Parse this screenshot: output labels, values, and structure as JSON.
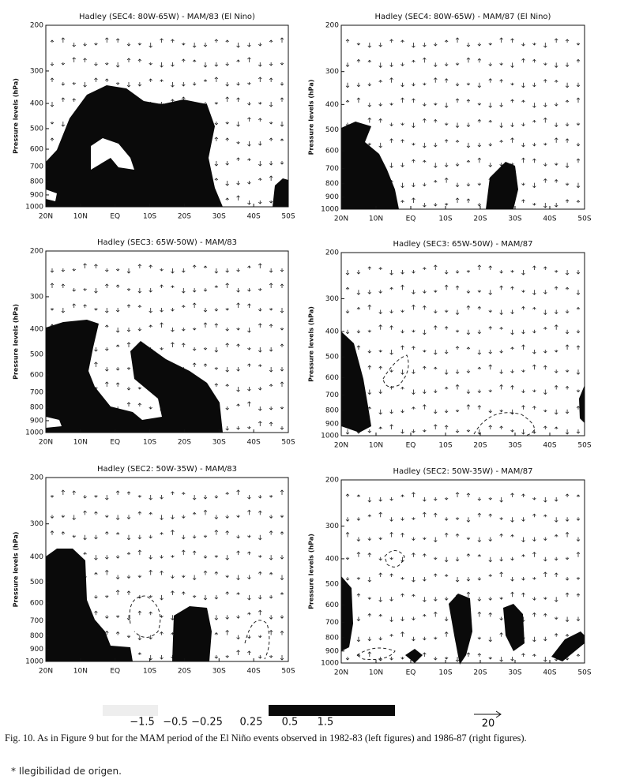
{
  "figure": {
    "panels": [
      {
        "title": "Hadley (SEC4: 80W-65W) - MAM/83 (El Nino)",
        "y_label": "Pressure levels (hPa)",
        "ylim": [
          200,
          1000
        ],
        "log_scale": true,
        "yticks": [
          200,
          300,
          400,
          500,
          600,
          700,
          800,
          900,
          1000
        ],
        "x_labels": [
          "20N",
          "10N",
          "EQ",
          "10S",
          "20S",
          "30S",
          "40S",
          "50S"
        ]
      },
      {
        "title": "Hadley (SEC4: 80W-65W) - MAM/87 (El Nino)",
        "y_label": "Pressure levels (hPa)",
        "ylim": [
          200,
          1000
        ],
        "log_scale": true,
        "yticks": [
          200,
          300,
          400,
          500,
          600,
          700,
          800,
          900,
          1000
        ],
        "x_labels": [
          "20N",
          "10N",
          "EQ",
          "10S",
          "20S",
          "30S",
          "40S",
          "50S"
        ]
      },
      {
        "title": "Hadley (SEC3: 65W-50W) - MAM/83",
        "y_label": "Pressure levels (hPa)",
        "ylim": [
          200,
          1000
        ],
        "log_scale": true,
        "yticks": [
          200,
          300,
          400,
          500,
          600,
          700,
          800,
          900,
          1000
        ],
        "x_labels": [
          "20N",
          "10N",
          "EQ",
          "10S",
          "20S",
          "30S",
          "40S",
          "50S"
        ]
      },
      {
        "title": "Hadley (SEC3: 65W-50W) - MAM/87",
        "y_label": "Pressure levels (hPa)",
        "ylim": [
          200,
          1000
        ],
        "log_scale": true,
        "yticks": [
          200,
          300,
          400,
          500,
          600,
          700,
          800,
          900,
          1000
        ],
        "x_labels": [
          "20N",
          "10N",
          "EQ",
          "10S",
          "20S",
          "30S",
          "40S",
          "50S"
        ]
      },
      {
        "title": "Hadley (SEC2: 50W-35W) - MAM/83",
        "y_label": "Pressure levels (hPa)",
        "ylim": [
          200,
          1000
        ],
        "log_scale": true,
        "yticks": [
          200,
          300,
          400,
          500,
          600,
          700,
          800,
          900,
          1000
        ],
        "x_labels": [
          "20N",
          "10N",
          "EQ",
          "10S",
          "20S",
          "30S",
          "40S",
          "50S"
        ]
      },
      {
        "title": "Hadley (SEC2: 50W-35W) - MAM/87",
        "y_label": "Pressure levels (hPa)",
        "ylim": [
          200,
          1000
        ],
        "log_scale": true,
        "yticks": [
          200,
          300,
          400,
          500,
          600,
          700,
          800,
          900,
          1000
        ],
        "x_labels": [
          "20N",
          "10N",
          "EQ",
          "10S",
          "20S",
          "30S",
          "40S",
          "50S"
        ]
      }
    ],
    "colorbar_labels": [
      "−1.5",
      "−0.5",
      "−0.25",
      "0.25",
      "0.5",
      "1.5"
    ],
    "arrow_scale": "20",
    "caption": "Fig. 10. As in Figure 9 but for the MAM period of the El Niño events observed in 1982-83 (left figures) and 1986-87 (right figures).",
    "footnote": "* Ilegibilidad de origen."
  }
}
